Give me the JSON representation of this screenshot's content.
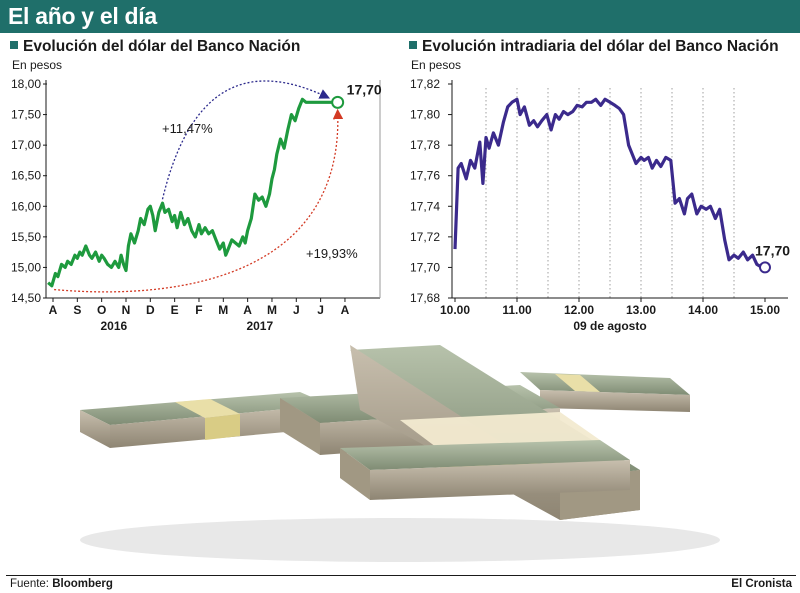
{
  "banner": {
    "title": "El año y el día"
  },
  "footer": {
    "source_label": "Fuente:",
    "source": "Bloomberg",
    "publisher": "El Cronista"
  },
  "photo": {
    "description": "stacks of US dollar bills"
  },
  "chart_data": [
    {
      "type": "line",
      "title": "Evolución del dólar del Banco Nación",
      "ylabel": "En pesos",
      "color": "#1e9a3e",
      "ylim": [
        14.5,
        18.0
      ],
      "yticks": [
        "14,50",
        "15,00",
        "15,50",
        "16,00",
        "16,50",
        "17,00",
        "17,50",
        "18,00"
      ],
      "ytick_values": [
        14.5,
        15.0,
        15.5,
        16.0,
        16.5,
        17.0,
        17.5,
        18.0
      ],
      "months": [
        "A",
        "S",
        "O",
        "N",
        "D",
        "E",
        "F",
        "M",
        "A",
        "M",
        "J",
        "J",
        "A"
      ],
      "years": [
        {
          "label": "2016",
          "month_index": 2.5
        },
        {
          "label": "2017",
          "month_index": 8.5
        }
      ],
      "x": [
        -0.2,
        -0.05,
        0.1,
        0.2,
        0.35,
        0.5,
        0.6,
        0.75,
        0.9,
        1.0,
        1.1,
        1.2,
        1.35,
        1.5,
        1.6,
        1.75,
        1.9,
        2.0,
        2.1,
        2.25,
        2.4,
        2.55,
        2.7,
        2.8,
        2.9,
        3.0,
        3.1,
        3.2,
        3.35,
        3.5,
        3.6,
        3.75,
        3.9,
        4.0,
        4.1,
        4.2,
        4.35,
        4.5,
        4.6,
        4.75,
        4.9,
        5.0,
        5.1,
        5.25,
        5.4,
        5.55,
        5.7,
        5.85,
        6.0,
        6.1,
        6.25,
        6.4,
        6.55,
        6.7,
        6.85,
        7.0,
        7.1,
        7.2,
        7.35,
        7.5,
        7.65,
        7.8,
        7.9,
        8.0,
        8.15,
        8.3,
        8.45,
        8.6,
        8.75,
        8.9,
        9.0,
        9.1,
        9.2,
        9.35,
        9.5,
        9.65,
        9.8,
        9.95,
        10.1,
        10.25,
        10.4,
        10.55,
        10.7,
        10.85,
        11.0,
        11.15,
        11.3,
        11.4,
        11.55,
        11.7
      ],
      "values": [
        14.75,
        14.7,
        14.9,
        14.85,
        15.05,
        15.0,
        15.1,
        15.05,
        15.2,
        15.15,
        15.25,
        15.2,
        15.35,
        15.2,
        15.15,
        15.25,
        15.1,
        15.2,
        15.15,
        15.05,
        15.0,
        15.1,
        15.0,
        15.2,
        15.05,
        14.95,
        15.35,
        15.55,
        15.4,
        15.6,
        15.8,
        15.7,
        15.95,
        16.0,
        15.85,
        15.6,
        15.9,
        16.05,
        15.9,
        15.95,
        15.75,
        15.85,
        15.65,
        15.9,
        15.7,
        15.8,
        15.6,
        15.5,
        15.7,
        15.55,
        15.65,
        15.55,
        15.6,
        15.45,
        15.3,
        15.4,
        15.2,
        15.3,
        15.45,
        15.4,
        15.35,
        15.5,
        15.4,
        15.6,
        15.8,
        16.2,
        16.1,
        16.15,
        16.0,
        16.2,
        16.45,
        16.6,
        16.85,
        17.1,
        16.95,
        17.25,
        17.5,
        17.4,
        17.6,
        17.75,
        17.7,
        17.7,
        17.7,
        17.7,
        17.7,
        17.7,
        17.7,
        17.7,
        17.7,
        17.7
      ],
      "end_label": "17,70",
      "end_value": 17.7,
      "annotations": [
        {
          "text": "+11,47%",
          "color": "#2c2a8c"
        },
        {
          "text": "+19,93%",
          "color": "#d33a24"
        }
      ]
    },
    {
      "type": "line",
      "title": "Evolución intradiaria del dólar del Banco Nación",
      "ylabel": "En pesos",
      "color": "#3b2a8c",
      "ylim": [
        17.68,
        17.82
      ],
      "yticks": [
        "17,68",
        "17,70",
        "17,72",
        "17,74",
        "17,76",
        "17,78",
        "17,80",
        "17,82"
      ],
      "ytick_values": [
        17.68,
        17.7,
        17.72,
        17.74,
        17.76,
        17.78,
        17.8,
        17.82
      ],
      "xticks": [
        "10.00",
        "11.00",
        "12.00",
        "13.00",
        "14.00",
        "15.00"
      ],
      "xtick_values": [
        10,
        11,
        12,
        13,
        14,
        15
      ],
      "xlabel": "09 de agosto",
      "x": [
        10.0,
        10.05,
        10.1,
        10.18,
        10.25,
        10.32,
        10.4,
        10.45,
        10.5,
        10.55,
        10.62,
        10.7,
        10.78,
        10.85,
        10.92,
        11.0,
        11.05,
        11.12,
        11.2,
        11.27,
        11.33,
        11.4,
        11.48,
        11.55,
        11.62,
        11.68,
        11.75,
        11.82,
        11.9,
        11.97,
        12.05,
        12.12,
        12.2,
        12.27,
        12.35,
        12.42,
        12.5,
        12.58,
        12.65,
        12.72,
        12.8,
        12.85,
        12.92,
        13.0,
        13.05,
        13.12,
        13.18,
        13.25,
        13.32,
        13.4,
        13.48,
        13.55,
        13.62,
        13.7,
        13.75,
        13.82,
        13.9,
        13.97,
        14.05,
        14.12,
        14.2,
        14.27,
        14.35,
        14.42,
        14.5,
        14.57,
        14.65,
        14.72,
        14.8,
        14.87,
        14.95,
        15.0
      ],
      "values": [
        17.712,
        17.765,
        17.768,
        17.758,
        17.77,
        17.765,
        17.782,
        17.755,
        17.785,
        17.778,
        17.788,
        17.78,
        17.795,
        17.805,
        17.808,
        17.81,
        17.8,
        17.805,
        17.793,
        17.796,
        17.792,
        17.796,
        17.8,
        17.79,
        17.8,
        17.797,
        17.802,
        17.8,
        17.802,
        17.806,
        17.805,
        17.808,
        17.808,
        17.81,
        17.806,
        17.81,
        17.808,
        17.806,
        17.804,
        17.8,
        17.78,
        17.775,
        17.768,
        17.772,
        17.77,
        17.772,
        17.765,
        17.77,
        17.766,
        17.772,
        17.77,
        17.742,
        17.745,
        17.735,
        17.745,
        17.748,
        17.735,
        17.74,
        17.738,
        17.74,
        17.732,
        17.738,
        17.718,
        17.705,
        17.708,
        17.706,
        17.71,
        17.705,
        17.708,
        17.702,
        17.7,
        17.7
      ],
      "end_label": "17,70",
      "end_value": 17.7
    }
  ]
}
